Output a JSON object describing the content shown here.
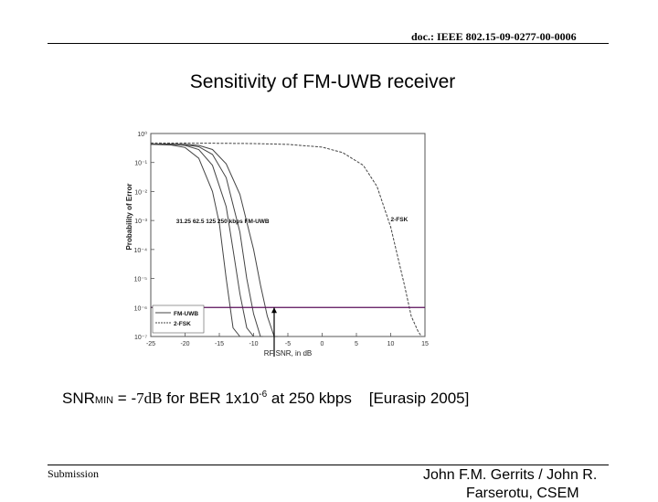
{
  "header": {
    "doc_id": "doc.: IEEE 802.15-09-0277-00-0006"
  },
  "slide": {
    "title": "Sensitivity of FM-UWB receiver"
  },
  "chart_data": {
    "type": "line",
    "xlabel": "RF SNR, in dB",
    "ylabel": "Probability of Error",
    "xlim": [
      -25,
      15
    ],
    "ylim_log10": [
      -7,
      0
    ],
    "xticks": [
      "-25",
      "-20",
      "-15",
      "-10",
      "-5",
      "0",
      "5",
      "10",
      "15"
    ],
    "yticks": [
      "10⁰",
      "10⁻¹",
      "10⁻²",
      "10⁻³",
      "10⁻⁴",
      "10⁻⁵",
      "10⁻⁶",
      "10⁻⁷"
    ],
    "reference_ber": 1e-06,
    "annotations": {
      "fmuwb_rates": "31.25  62.5  125  250 kbps  FM-UWB",
      "fsk": "2-FSK"
    },
    "legend": {
      "placement": "bottom-left",
      "entries": [
        "FM-UWB",
        "2-FSK"
      ]
    },
    "series": [
      {
        "name": "FM-UWB",
        "x": [
          -25,
          -22,
          -20,
          -18,
          -16,
          -15,
          -14,
          -13,
          -12
        ],
        "y": [
          0.42,
          0.4,
          0.33,
          0.14,
          0.01,
          0.0008,
          1e-05,
          2e-07,
          1e-07
        ]
      },
      {
        "name": "FM-UWB",
        "x": [
          -25,
          -22,
          -20,
          -18,
          -16,
          -14,
          -13,
          -12,
          -11,
          -10
        ],
        "y": [
          0.43,
          0.42,
          0.39,
          0.28,
          0.08,
          0.003,
          0.0001,
          3e-06,
          2e-07,
          1e-07
        ]
      },
      {
        "name": "FM-UWB",
        "x": [
          -25,
          -22,
          -20,
          -18,
          -16,
          -14,
          -12,
          -11,
          -10,
          -9,
          -8.6
        ],
        "y": [
          0.43,
          0.43,
          0.41,
          0.35,
          0.19,
          0.03,
          0.0004,
          1e-05,
          6e-07,
          1e-07,
          1e-07
        ]
      },
      {
        "name": "FM-UWB",
        "x": [
          -25,
          -22,
          -20,
          -18,
          -16,
          -14,
          -12,
          -10,
          -9,
          -8,
          -7,
          -6.5
        ],
        "y": [
          0.43,
          0.43,
          0.42,
          0.39,
          0.28,
          0.09,
          0.008,
          0.0001,
          6e-06,
          5e-07,
          1e-07,
          1e-07
        ]
      },
      {
        "name": "2-FSK",
        "x": [
          -25,
          -15,
          -10,
          -5,
          0,
          3,
          6,
          8,
          10,
          12,
          13,
          14,
          14.5
        ],
        "y": [
          0.47,
          0.46,
          0.45,
          0.42,
          0.34,
          0.22,
          0.08,
          0.015,
          0.0006,
          6e-06,
          5e-07,
          1.5e-07,
          1e-07
        ]
      }
    ]
  },
  "summary": {
    "snr_prefix": "SNR",
    "snr_sub": "MIN",
    "snr_eq": " = -",
    "snr_value": "7dB",
    "ber_text": " for BER 1x10",
    "ber_exp": "-6",
    "rate_text": " at 250 kbps",
    "ref": "[Eurasip 2005]"
  },
  "footer": {
    "left": "Submission",
    "right_line1": "John F.M. Gerrits / John R.",
    "right_line2": "Farserotu, CSEM"
  }
}
